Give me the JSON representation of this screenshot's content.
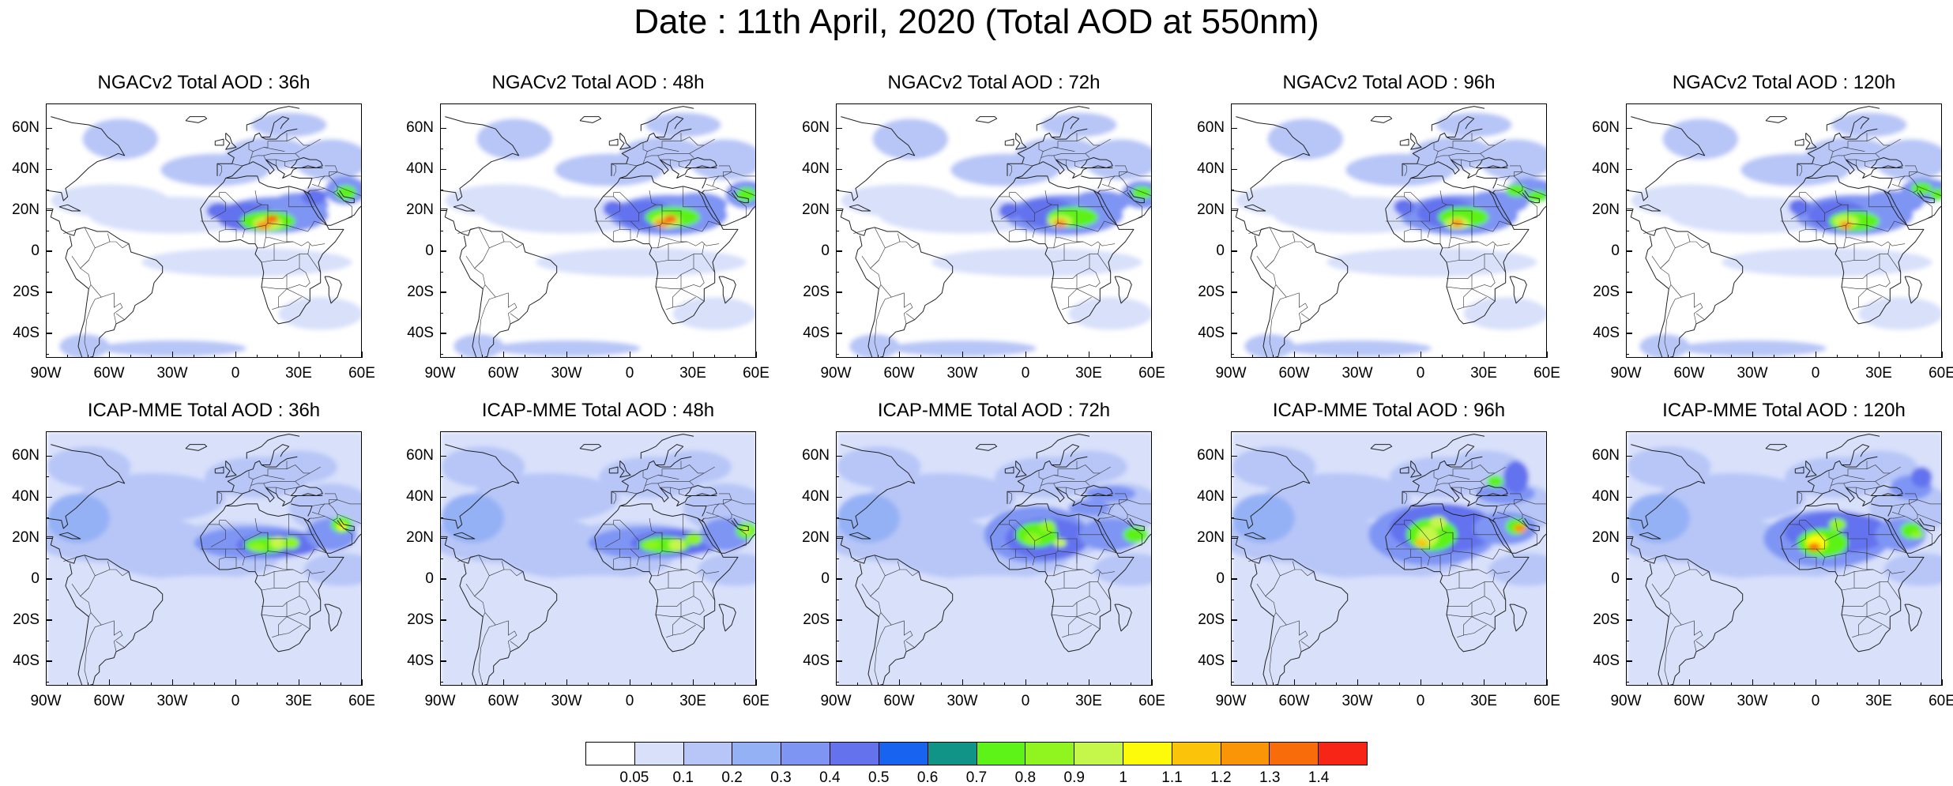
{
  "figure": {
    "title": "Date : 11th April, 2020 (Total AOD at 550nm)"
  },
  "axes": {
    "lat_labels": [
      "60N",
      "40N",
      "20N",
      "0",
      "20S",
      "40S"
    ],
    "lon_labels": [
      "90W",
      "60W",
      "30W",
      "0",
      "30E",
      "60E"
    ]
  },
  "panels": [
    {
      "title": "NGACv2 Total AOD : 36h",
      "model": "NGACv2",
      "lead_hours": 36,
      "peak_aod": 1.4
    },
    {
      "title": "NGACv2 Total AOD : 48h",
      "model": "NGACv2",
      "lead_hours": 48,
      "peak_aod": 1.4
    },
    {
      "title": "NGACv2 Total AOD : 72h",
      "model": "NGACv2",
      "lead_hours": 72,
      "peak_aod": 1.3
    },
    {
      "title": "NGACv2 Total AOD : 96h",
      "model": "NGACv2",
      "lead_hours": 96,
      "peak_aod": 1.3
    },
    {
      "title": "NGACv2 Total AOD : 120h",
      "model": "NGACv2",
      "lead_hours": 120,
      "peak_aod": 1.3
    },
    {
      "title": "ICAP-MME Total AOD : 36h",
      "model": "ICAP-MME",
      "lead_hours": 36,
      "peak_aod": 1.1
    },
    {
      "title": "ICAP-MME Total AOD : 48h",
      "model": "ICAP-MME",
      "lead_hours": 48,
      "peak_aod": 1.1
    },
    {
      "title": "ICAP-MME Total AOD : 72h",
      "model": "ICAP-MME",
      "lead_hours": 72,
      "peak_aod": 1.0
    },
    {
      "title": "ICAP-MME Total AOD : 96h",
      "model": "ICAP-MME",
      "lead_hours": 96,
      "peak_aod": 1.3
    },
    {
      "title": "ICAP-MME Total AOD : 120h",
      "model": "ICAP-MME",
      "lead_hours": 120,
      "peak_aod": 1.4
    }
  ],
  "colorbar": {
    "labels": [
      "0.05",
      "0.1",
      "0.2",
      "0.3",
      "0.4",
      "0.5",
      "0.6",
      "0.7",
      "0.8",
      "0.9",
      "1",
      "1.1",
      "1.2",
      "1.3",
      "1.4"
    ],
    "colors": [
      "#ffffff",
      "#d8e0fa",
      "#b7c6f7",
      "#95b1f6",
      "#7f95f4",
      "#6472ee",
      "#1864f0",
      "#119488",
      "#5df218",
      "#90f41e",
      "#c5f64a",
      "#fdfb09",
      "#fbc40b",
      "#fb9508",
      "#f86c0a",
      "#f62516"
    ]
  }
}
